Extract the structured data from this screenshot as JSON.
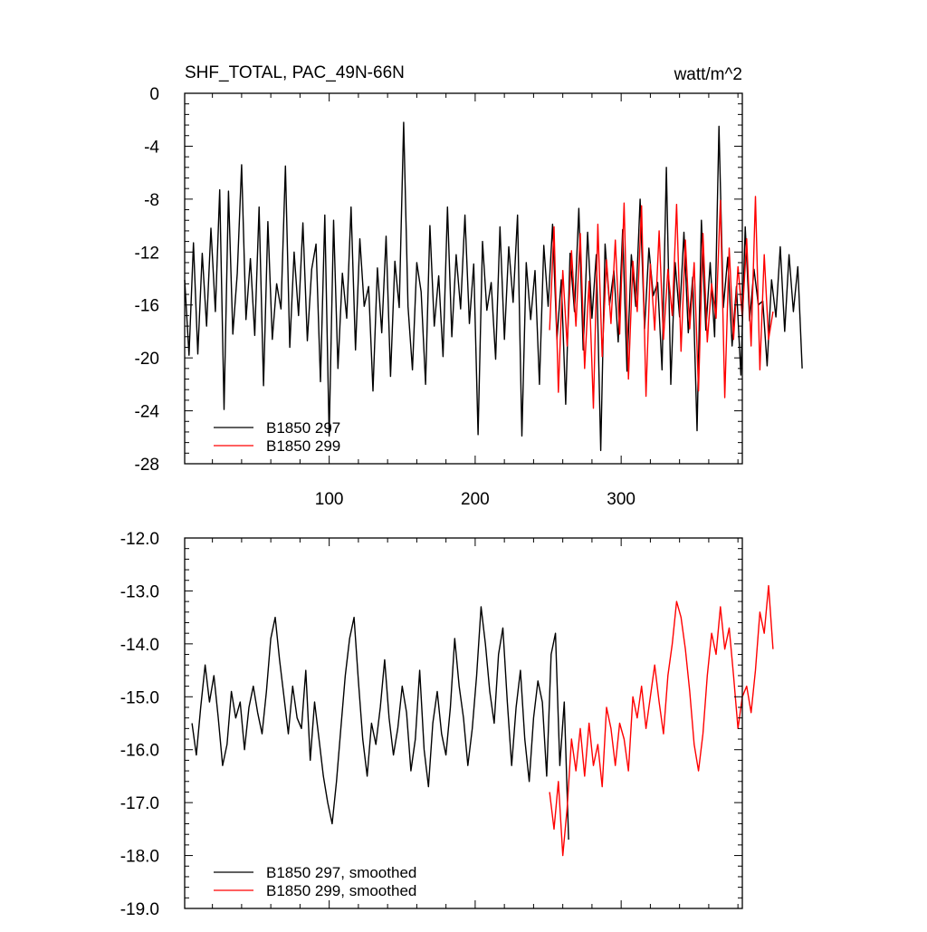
{
  "chart_data": [
    {
      "type": "line",
      "title": "SHF_TOTAL, PAC_49N-66N",
      "units": "watt/m^2",
      "xlim": [
        1,
        383
      ],
      "ylim": [
        -28,
        0
      ],
      "x_ticks": [
        100,
        200,
        300
      ],
      "x_tick_labels": [
        "100",
        "200",
        "300"
      ],
      "y_ticks": [
        0,
        -4,
        -8,
        -12,
        -16,
        -20,
        -24,
        -28
      ],
      "y_tick_labels": [
        "0",
        "-4",
        "-8",
        "-12",
        "-16",
        "-20",
        "-24",
        "-28"
      ],
      "legend_position": "bottom-left",
      "series": [
        {
          "name": "B1850 297",
          "color": "#000000",
          "x_start": 1,
          "x_step": 3,
          "values": [
            -14.1,
            -19.8,
            -11.3,
            -19.7,
            -12.1,
            -17.6,
            -10.2,
            -16.5,
            -7.3,
            -23.9,
            -7.4,
            -18.2,
            -13.6,
            -5.4,
            -17.1,
            -12.5,
            -18.3,
            -8.6,
            -22.1,
            -9.7,
            -18.6,
            -14.4,
            -16.3,
            -5.5,
            -19.2,
            -12.0,
            -16.8,
            -9.8,
            -18.7,
            -13.3,
            -11.4,
            -21.8,
            -9.2,
            -25.9,
            -9.6,
            -20.8,
            -13.6,
            -17.0,
            -8.6,
            -19.4,
            -11.0,
            -16.1,
            -14.6,
            -22.5,
            -13.2,
            -18.1,
            -10.8,
            -21.4,
            -12.7,
            -16.2,
            -2.2,
            -16.1,
            -20.9,
            -12.8,
            -15.0,
            -22.0,
            -10.0,
            -17.6,
            -13.8,
            -19.9,
            -8.6,
            -18.4,
            -12.2,
            -16.3,
            -9.2,
            -17.4,
            -12.9,
            -25.8,
            -11.2,
            -16.4,
            -14.3,
            -20.1,
            -10.1,
            -18.6,
            -11.6,
            -15.8,
            -9.2,
            -25.9,
            -12.8,
            -17.1,
            -13.4,
            -22.0,
            -11.5,
            -16.1,
            -9.9,
            -18.6,
            -14.1,
            -23.5,
            -12.1,
            -16.5,
            -8.7,
            -19.4,
            -10.5,
            -17.0,
            -12.2,
            -27.0,
            -11.4,
            -16.0,
            -13.4,
            -18.8,
            -10.3,
            -21.0,
            -12.2,
            -16.1,
            -8.0,
            -17.8,
            -11.7,
            -15.3,
            -14.3,
            -20.9,
            -5.6,
            -22.0,
            -12.8,
            -16.9,
            -10.5,
            -18.1,
            -13.9,
            -25.5,
            -9.6,
            -17.9,
            -12.8,
            -18.4,
            -2.5,
            -16.2,
            -12.4,
            -19.1,
            -14.6,
            -21.3,
            -10.1,
            -17.2,
            -13.3,
            -16.0,
            -15.7,
            -20.6,
            -14.1,
            -16.9,
            -11.6,
            -18.0,
            -12.2,
            -16.5,
            -13.1,
            -20.8
          ]
        },
        {
          "name": "B1850 299",
          "color": "#ff0000",
          "x_start": 251,
          "x_step": 3,
          "values": [
            -17.9,
            -10.1,
            -22.6,
            -13.4,
            -19.1,
            -11.9,
            -17.6,
            -10.6,
            -20.8,
            -14.2,
            -23.8,
            -9.9,
            -19.9,
            -12.6,
            -17.4,
            -11.1,
            -18.2,
            -8.3,
            -21.6,
            -12.7,
            -16.5,
            -8.5,
            -22.9,
            -12.9,
            -17.9,
            -10.4,
            -18.6,
            -13.3,
            -16.8,
            -8.4,
            -19.5,
            -11.1,
            -17.8,
            -12.8,
            -22.5,
            -10.6,
            -18.8,
            -14.4,
            -17.0,
            -8.1,
            -23.0,
            -11.7,
            -18.6,
            -13.1,
            -16.9,
            -11.0,
            -19.1,
            -7.8,
            -20.9,
            -12.2,
            -18.6,
            -16.5
          ]
        }
      ]
    },
    {
      "type": "line",
      "title": "",
      "units": "",
      "xlim": [
        1,
        383
      ],
      "ylim": [
        -19,
        -12
      ],
      "y_ticks": [
        -12,
        -13,
        -14,
        -15,
        -16,
        -17,
        -18,
        -19
      ],
      "y_tick_labels": [
        "-12.0",
        "-13.0",
        "-14.0",
        "-15.0",
        "-16.0",
        "-17.0",
        "-18.0",
        "-19.0"
      ],
      "legend_position": "bottom-left",
      "series": [
        {
          "name": "B1850 297, smoothed",
          "color": "#000000",
          "x_start": 6,
          "x_step": 3,
          "values": [
            -15.5,
            -16.1,
            -15.2,
            -14.4,
            -15.1,
            -14.6,
            -15.4,
            -16.3,
            -15.9,
            -14.9,
            -15.4,
            -15.1,
            -16.0,
            -15.2,
            -14.8,
            -15.3,
            -15.7,
            -14.9,
            -13.9,
            -13.5,
            -14.3,
            -15.0,
            -15.7,
            -14.8,
            -15.4,
            -15.6,
            -14.5,
            -16.2,
            -15.1,
            -15.8,
            -16.5,
            -17.0,
            -17.4,
            -16.6,
            -15.6,
            -14.6,
            -13.9,
            -13.5,
            -14.7,
            -15.8,
            -16.5,
            -15.5,
            -15.9,
            -15.2,
            -14.3,
            -15.4,
            -16.1,
            -15.6,
            -14.8,
            -15.3,
            -16.4,
            -15.8,
            -14.5,
            -16.0,
            -16.7,
            -15.5,
            -14.9,
            -15.7,
            -16.1,
            -15.2,
            -13.9,
            -14.8,
            -15.4,
            -16.3,
            -15.6,
            -14.6,
            -13.3,
            -14.0,
            -14.9,
            -15.5,
            -14.2,
            -13.7,
            -15.1,
            -16.3,
            -15.2,
            -14.5,
            -15.8,
            -16.6,
            -15.4,
            -14.7,
            -15.1,
            -16.5,
            -14.2,
            -13.8,
            -16.3,
            -15.1,
            -17.7
          ]
        },
        {
          "name": "B1850 299, smoothed",
          "color": "#ff0000",
          "x_start": 251,
          "x_step": 3,
          "values": [
            -16.8,
            -17.5,
            -16.6,
            -18.0,
            -17.1,
            -15.8,
            -16.4,
            -15.6,
            -16.5,
            -15.5,
            -16.3,
            -15.9,
            -16.7,
            -15.2,
            -15.6,
            -16.3,
            -15.5,
            -15.8,
            -16.4,
            -15.0,
            -15.4,
            -14.8,
            -15.6,
            -15.0,
            -14.4,
            -15.1,
            -15.7,
            -14.6,
            -14.0,
            -13.2,
            -13.5,
            -14.1,
            -14.9,
            -15.9,
            -16.4,
            -15.7,
            -14.6,
            -13.8,
            -14.2,
            -13.3,
            -14.1,
            -13.7,
            -14.6,
            -15.6,
            -15.0,
            -14.8,
            -15.3,
            -14.5,
            -13.4,
            -13.8,
            -12.9,
            -14.1
          ]
        }
      ]
    }
  ]
}
